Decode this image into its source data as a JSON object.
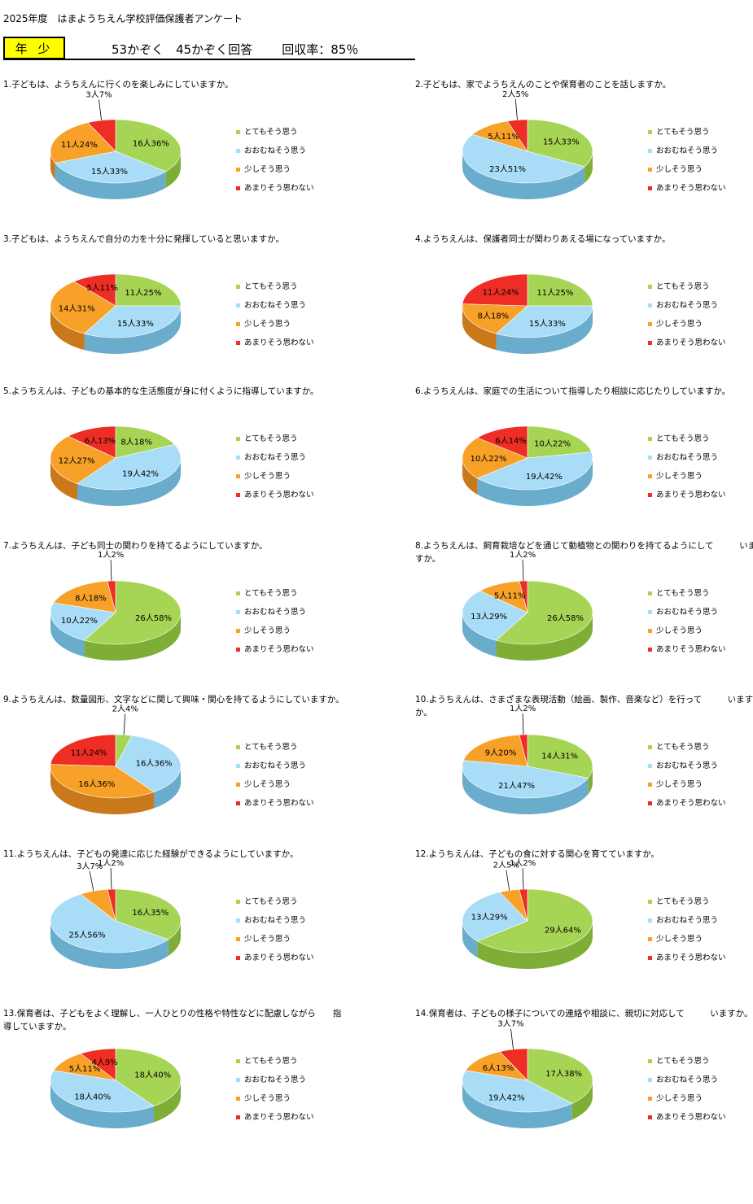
{
  "header": {
    "title": "2025年度　はまようちえん学校評価保護者アンケート",
    "grade": "年 少",
    "response_counts": "53かぞく　45かぞく回答",
    "response_rate": "回収率：85％"
  },
  "legend_labels": [
    "とてもそう思う",
    "おおむねそう思う",
    "少しそう思う",
    "あまりそう思わない"
  ],
  "colors": {
    "green": "#a6d454",
    "blue": "#a9ddf7",
    "orange": "#f7a128",
    "red": "#ee2d24"
  },
  "chart_data": [
    {
      "type": "pie",
      "title": "1.子どもは、ようちえんに行くのを楽しみにしていますか。",
      "series": [
        {
          "name": "とてもそう思う",
          "label": "16人36%",
          "value": 36
        },
        {
          "name": "おおむねそう思う",
          "label": "15人33%",
          "value": 33
        },
        {
          "name": "少しそう思う",
          "label": "11人24%",
          "value": 24
        },
        {
          "name": "あまりそう思わない",
          "label": "3人7%",
          "value": 7
        }
      ]
    },
    {
      "type": "pie",
      "title": "2.子どもは、家でようちえんのことや保育者のことを話しますか。",
      "series": [
        {
          "name": "とてもそう思う",
          "label": "15人33%",
          "value": 33
        },
        {
          "name": "おおむねそう思う",
          "label": "23人51%",
          "value": 51
        },
        {
          "name": "少しそう思う",
          "label": "5人11%",
          "value": 11
        },
        {
          "name": "あまりそう思わない",
          "label": "2人5%",
          "value": 5
        }
      ]
    },
    {
      "type": "pie",
      "title": "3.子どもは、ようちえんで自分の力を十分に発揮していると思いますか。",
      "series": [
        {
          "name": "とてもそう思う",
          "label": "11人25%",
          "value": 25
        },
        {
          "name": "おおむねそう思う",
          "label": "15人33%",
          "value": 33
        },
        {
          "name": "少しそう思う",
          "label": "14人31%",
          "value": 31
        },
        {
          "name": "あまりそう思わない",
          "label": "5人11%",
          "value": 11
        }
      ]
    },
    {
      "type": "pie",
      "title": "4.ようちえんは、保護者同士が関わりあえる場になっていますか。",
      "series": [
        {
          "name": "とてもそう思う",
          "label": "11人25%",
          "value": 25
        },
        {
          "name": "おおむねそう思う",
          "label": "15人33%",
          "value": 33
        },
        {
          "name": "少しそう思う",
          "label": "8人18%",
          "value": 18
        },
        {
          "name": "あまりそう思わない",
          "label": "11人24%",
          "value": 24
        }
      ]
    },
    {
      "type": "pie",
      "title": "5.ようちえんは、子どもの基本的な生活態度が身に付くように指導していますか。",
      "series": [
        {
          "name": "とてもそう思う",
          "label": "8人18%",
          "value": 18
        },
        {
          "name": "おおむねそう思う",
          "label": "19人42%",
          "value": 42
        },
        {
          "name": "少しそう思う",
          "label": "12人27%",
          "value": 27
        },
        {
          "name": "あまりそう思わない",
          "label": "6人13%",
          "value": 13
        }
      ]
    },
    {
      "type": "pie",
      "title": "6.ようちえんは、家庭での生活について指導したり相談に応じたりしていますか。",
      "series": [
        {
          "name": "とてもそう思う",
          "label": "10人22%",
          "value": 22
        },
        {
          "name": "おおむねそう思う",
          "label": "19人42%",
          "value": 42
        },
        {
          "name": "少しそう思う",
          "label": "10人22%",
          "value": 22
        },
        {
          "name": "あまりそう思わない",
          "label": "6人14%",
          "value": 14
        }
      ]
    },
    {
      "type": "pie",
      "title": "7.ようちえんは、子ども同士の関わりを持てるようにしていますか。",
      "series": [
        {
          "name": "とてもそう思う",
          "label": "26人58%",
          "value": 58
        },
        {
          "name": "おおむねそう思う",
          "label": "10人22%",
          "value": 22
        },
        {
          "name": "少しそう思う",
          "label": "8人18%",
          "value": 18
        },
        {
          "name": "あまりそう思わない",
          "label": "1人2%",
          "value": 2
        }
      ]
    },
    {
      "type": "pie",
      "title": "8.ようちえんは、飼育栽培などを通じて動植物との関わりを持てるようにして　　　いますか。",
      "series": [
        {
          "name": "とてもそう思う",
          "label": "26人58%",
          "value": 58
        },
        {
          "name": "おおむねそう思う",
          "label": "13人29%",
          "value": 29
        },
        {
          "name": "少しそう思う",
          "label": "5人11%",
          "value": 11
        },
        {
          "name": "あまりそう思わない",
          "label": "1人2%",
          "value": 2
        }
      ]
    },
    {
      "type": "pie",
      "title": "9.ようちえんは、数量図形、文字などに関して興味・関心を持てるようにしていますか。",
      "series": [
        {
          "name": "とてもそう思う",
          "label": "2人4%",
          "value": 4
        },
        {
          "name": "おおむねそう思う",
          "label": "16人36%",
          "value": 36
        },
        {
          "name": "少しそう思う",
          "label": "16人36%",
          "value": 36
        },
        {
          "name": "あまりそう思わない",
          "label": "11人24%",
          "value": 24
        }
      ]
    },
    {
      "type": "pie",
      "title": "10.ようちえんは、さまざまな表現活動（絵画、製作、音楽など）を行って　　　いますか。",
      "series": [
        {
          "name": "とてもそう思う",
          "label": "14人31%",
          "value": 31
        },
        {
          "name": "おおむねそう思う",
          "label": "21人47%",
          "value": 47
        },
        {
          "name": "少しそう思う",
          "label": "9人20%",
          "value": 20
        },
        {
          "name": "あまりそう思わない",
          "label": "1人2%",
          "value": 2
        }
      ]
    },
    {
      "type": "pie",
      "title": "11.ようちえんは、子どもの発達に応じた経験ができるようにしていますか。",
      "series": [
        {
          "name": "とてもそう思う",
          "label": "16人35%",
          "value": 35
        },
        {
          "name": "おおむねそう思う",
          "label": "25人56%",
          "value": 56
        },
        {
          "name": "少しそう思う",
          "label": "3人7%",
          "value": 7
        },
        {
          "name": "あまりそう思わない",
          "label": "1人2%",
          "value": 2
        }
      ]
    },
    {
      "type": "pie",
      "title": "12.ようちえんは、子どもの食に対する関心を育てていますか。",
      "series": [
        {
          "name": "とてもそう思う",
          "label": "29人64%",
          "value": 64
        },
        {
          "name": "おおむねそう思う",
          "label": "13人29%",
          "value": 29
        },
        {
          "name": "少しそう思う",
          "label": "2人5%",
          "value": 5
        },
        {
          "name": "あまりそう思わない",
          "label": "1人2%",
          "value": 2
        }
      ]
    },
    {
      "type": "pie",
      "title": "13.保育者は、子どもをよく理解し、一人ひとりの性格や特性などに配慮しながら　　指導していますか。",
      "series": [
        {
          "name": "とてもそう思う",
          "label": "18人40%",
          "value": 40
        },
        {
          "name": "おおむねそう思う",
          "label": "18人40%",
          "value": 40
        },
        {
          "name": "少しそう思う",
          "label": "5人11%",
          "value": 11
        },
        {
          "name": "あまりそう思わない",
          "label": "4人9%",
          "value": 9
        }
      ]
    },
    {
      "type": "pie",
      "title": "14.保育者は、子どもの様子についての連絡や相談に、親切に対応して　　　いますか。",
      "series": [
        {
          "name": "とてもそう思う",
          "label": "17人38%",
          "value": 38
        },
        {
          "name": "おおむねそう思う",
          "label": "19人42%",
          "value": 42
        },
        {
          "name": "少しそう思う",
          "label": "6人13%",
          "value": 13
        },
        {
          "name": "あまりそう思わない",
          "label": "3人7%",
          "value": 7
        }
      ]
    }
  ]
}
